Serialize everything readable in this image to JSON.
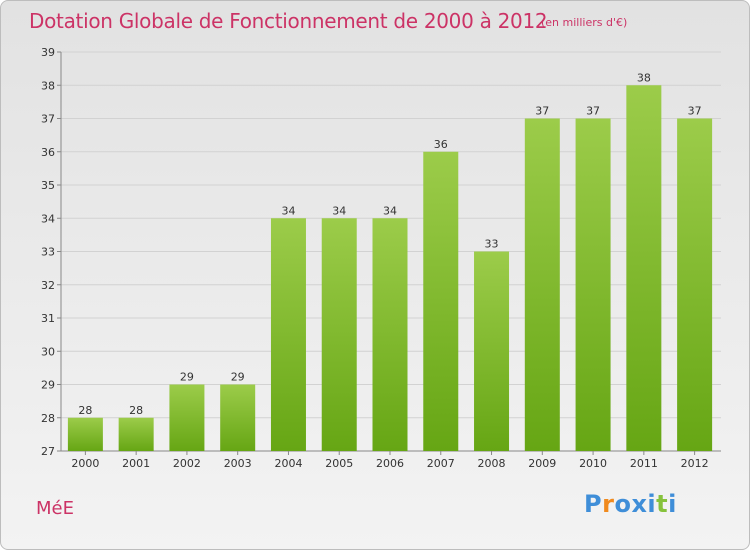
{
  "chart_data": {
    "type": "bar",
    "title": "Dotation Globale de Fonctionnement de 2000 à 2012",
    "subtitle": "(en milliers d'€)",
    "categories": [
      "2000",
      "2001",
      "2002",
      "2003",
      "2004",
      "2005",
      "2006",
      "2007",
      "2008",
      "2009",
      "2010",
      "2011",
      "2012"
    ],
    "values": [
      28,
      28,
      29,
      29,
      34,
      34,
      34,
      36,
      33,
      37,
      37,
      38,
      37
    ],
    "ylim": [
      27,
      39
    ],
    "yticks": [
      27,
      28,
      29,
      30,
      31,
      32,
      33,
      34,
      35,
      36,
      37,
      38,
      39
    ],
    "grid": true,
    "bar_color_top": "#9ccc4a",
    "bar_color_bottom": "#66a614"
  },
  "commune": "MéE",
  "logo": {
    "letters": [
      "P",
      "r",
      "o",
      "x",
      "i",
      "t",
      "i"
    ],
    "colors": [
      "#3f8ed8",
      "#f08a1e",
      "#3f8ed8",
      "#3f8ed8",
      "#3f8ed8",
      "#86c23c",
      "#3f8ed8"
    ]
  }
}
